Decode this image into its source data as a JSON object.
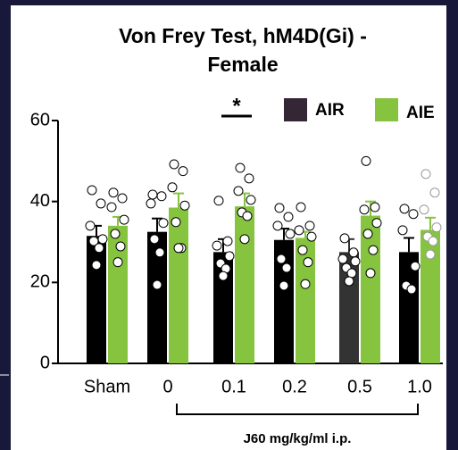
{
  "chart_data": {
    "type": "bar",
    "title": [
      "Von Frey Test, hM4D(Gi) -",
      "Female"
    ],
    "categories": [
      "Sham",
      "0",
      "0.1",
      "0.2",
      "0.5",
      "1.0"
    ],
    "x_label": "J60 mg/kg/ml i.p.",
    "annotation": "*",
    "ylim": [
      0,
      60
    ],
    "yticks": [
      0,
      20,
      40,
      60
    ],
    "series": [
      {
        "name": "AIR",
        "color": "#000000",
        "values": [
          31.5,
          32.5,
          27.5,
          30.5,
          27.5,
          27.5
        ],
        "errors": [
          2.5,
          3.3,
          3.2,
          2.8,
          3.2,
          3.5
        ],
        "points": [
          [
            42.8,
            39.5,
            34,
            30.7,
            30.2,
            28.5,
            24.3
          ],
          [
            41.7,
            41.3,
            39.5,
            34.7,
            30.7,
            27.4,
            19.4
          ],
          [
            40.2,
            30.2,
            29.1,
            26.5,
            24.7,
            23.4,
            21.6
          ],
          [
            38.4,
            36.2,
            34,
            32,
            25.8,
            23.6,
            19.2
          ],
          [
            30.9,
            27.4,
            25.8,
            25.2,
            23.6,
            22.3,
            20.3
          ],
          [
            38.2,
            36.9,
            32.9,
            24,
            19.2,
            18.3
          ]
        ]
      },
      {
        "name": "AIE",
        "color": "#86c440",
        "values": [
          34,
          38.5,
          38.8,
          31,
          36.5,
          33
        ],
        "errors": [
          2.2,
          3.5,
          3.2,
          1.5,
          3.5,
          3
        ],
        "points": [
          [
            42.2,
            40.8,
            38.6,
            35.5,
            32,
            28.9,
            25
          ],
          [
            49.2,
            47.5,
            43.5,
            39,
            34.9,
            28.5,
            28.5
          ],
          [
            48.3,
            45.7,
            42.6,
            40.4,
            37.3,
            36.4,
            30.7
          ],
          [
            38.6,
            34,
            32.9,
            31.3,
            28,
            25,
            19.6
          ],
          [
            50,
            38.6,
            38,
            34.7,
            32,
            28,
            22.3
          ],
          [
            46.8,
            42.2,
            38,
            33.6,
            31.3,
            30.2,
            26.9
          ]
        ]
      }
    ]
  }
}
